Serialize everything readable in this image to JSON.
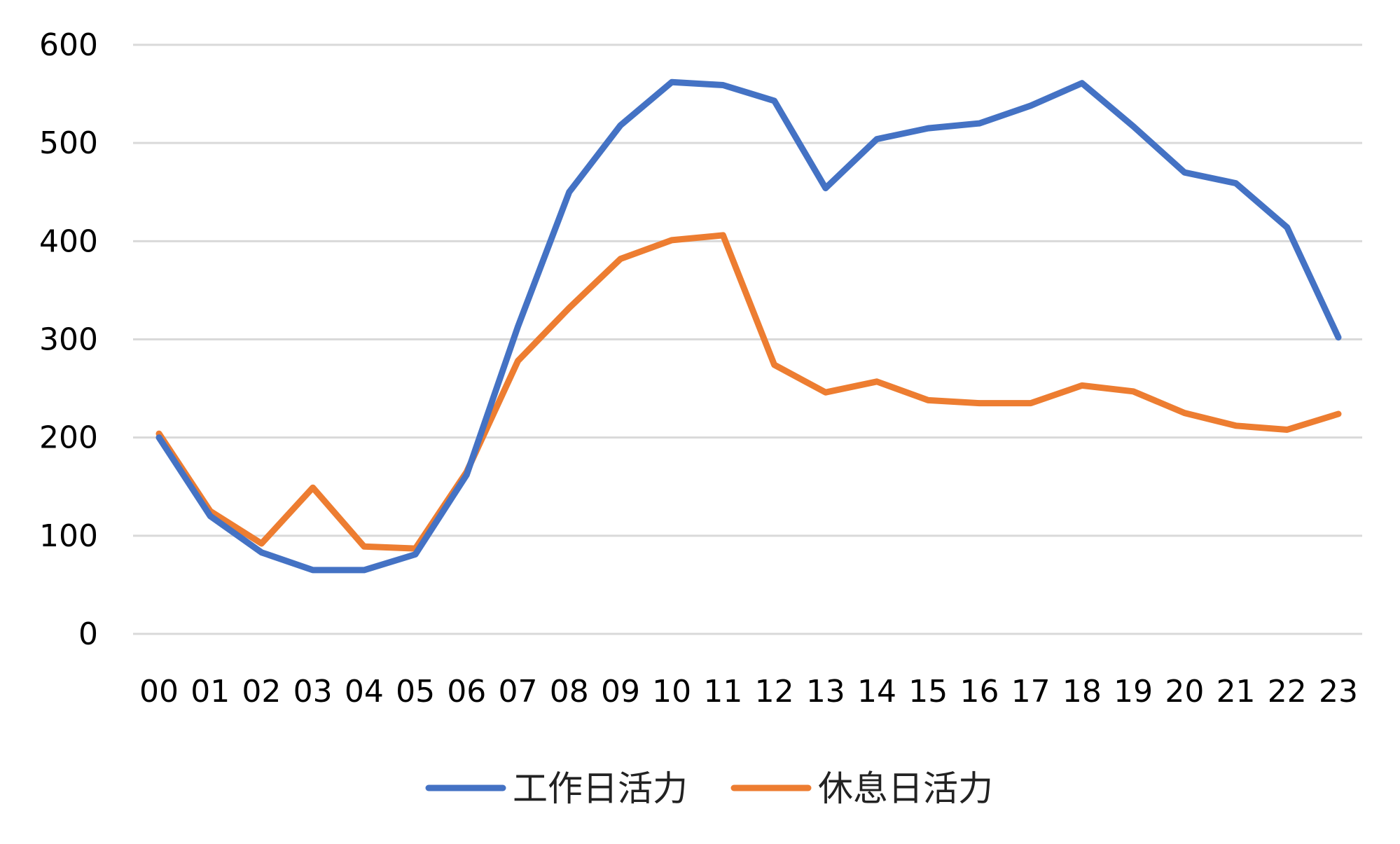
{
  "chart_data": {
    "type": "line",
    "title": "",
    "xlabel": "",
    "ylabel": "",
    "categories": [
      "00",
      "01",
      "02",
      "03",
      "04",
      "05",
      "06",
      "07",
      "08",
      "09",
      "10",
      "11",
      "12",
      "13",
      "14",
      "15",
      "16",
      "17",
      "18",
      "19",
      "20",
      "21",
      "22",
      "23"
    ],
    "y_ticks": [
      "0",
      "100",
      "200",
      "300",
      "400",
      "500",
      "600"
    ],
    "ylim": [
      0,
      600
    ],
    "grid": true,
    "legend_position": "bottom",
    "series": [
      {
        "name": "工作日活力",
        "color": "#4472C4",
        "values": [
          200,
          120,
          83,
          65,
          65,
          81,
          162,
          313,
          450,
          518,
          562,
          559,
          543,
          454,
          504,
          515,
          520,
          538,
          561,
          517,
          470,
          459,
          414,
          302
        ]
      },
      {
        "name": "休息日活力",
        "color": "#ED7D31",
        "values": [
          204,
          125,
          92,
          149,
          89,
          87,
          165,
          278,
          332,
          382,
          401,
          406,
          274,
          246,
          257,
          238,
          235,
          235,
          253,
          247,
          225,
          212,
          208,
          224
        ]
      }
    ]
  }
}
